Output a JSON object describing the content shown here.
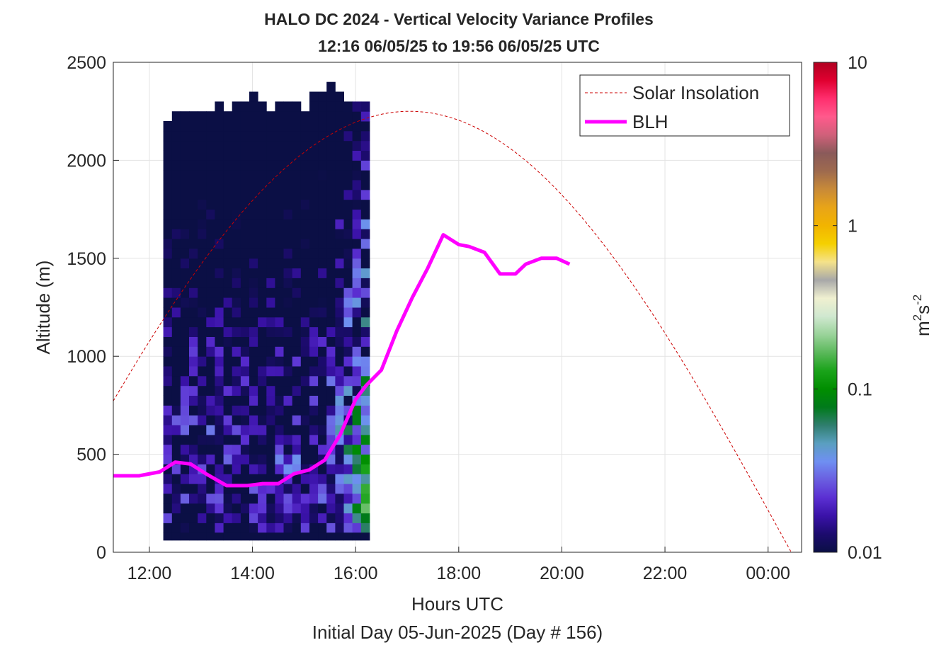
{
  "chart_data": {
    "type": "heatmap",
    "title": "HALO DC 2024 - Vertical Velocity Variance Profiles",
    "subtitle": "12:16 06/05/25 to 19:56 06/05/25  UTC",
    "xlabel": "Hours UTC",
    "xlabel2": "Initial Day 05-Jun-2025 (Day # 156)",
    "ylabel": "Altitude (m)",
    "x_range_hours": [
      11.3,
      24.65
    ],
    "ylim": [
      0,
      2500
    ],
    "x_ticks": [
      12,
      14,
      16,
      18,
      20,
      22,
      24
    ],
    "x_tick_labels": [
      "12:00",
      "14:00",
      "16:00",
      "18:00",
      "20:00",
      "22:00",
      "00:00"
    ],
    "y_ticks": [
      0,
      500,
      1000,
      1500,
      2000,
      2500
    ],
    "y_tick_labels": [
      "0",
      "500",
      "1000",
      "1500",
      "2000",
      "2500"
    ],
    "grid": true,
    "legend_position": "top-right",
    "colorbar": {
      "label": "m2s-2",
      "label_main": "m",
      "label_sup1": "2",
      "label_mid": "s",
      "label_sup2": "-2",
      "scale": "log",
      "range": [
        0.01,
        10
      ],
      "ticks": [
        0.01,
        0.1,
        1,
        10
      ],
      "tick_labels": [
        "0.01",
        "0.1",
        "1",
        "10"
      ],
      "colors": [
        "#0b0f45",
        "#1c0b6e",
        "#3a12a8",
        "#5b2fd2",
        "#6a5ee0",
        "#6f8ff2",
        "#5a9fc0",
        "#2f7e6e",
        "#007a1a",
        "#008e00",
        "#1aa31a",
        "#5ab85a",
        "#9ad39a",
        "#d0e8d0",
        "#f0f0d0",
        "#a8a8a8",
        "#f5e28a",
        "#f5d000",
        "#f2b400",
        "#e8a418",
        "#c88a38",
        "#9e6a4e",
        "#8a5a5a",
        "#d0607a",
        "#ff5a8c",
        "#ff2e6e",
        "#e00030",
        "#b00020"
      ]
    },
    "heatmap": {
      "time_start_hours": 12.27,
      "time_step_hours": 0.1667,
      "alt_start_m": 100,
      "alt_step_m": 50,
      "notes": "log10 of variance per cell; columns = time steps, rows = altitude bins from bottom"
    },
    "series": [
      {
        "name": "Solar Insolation",
        "style": "dashed",
        "color": "#cc0000",
        "peak_time_hours": 17.05,
        "peak_alt_m": 2250,
        "zero_time_hours": 24.45
      },
      {
        "name": "BLH",
        "style": "solid",
        "color": "#ff00ff",
        "x": [
          11.3,
          11.8,
          12.2,
          12.5,
          12.8,
          13.1,
          13.5,
          13.9,
          14.2,
          14.5,
          14.8,
          15.1,
          15.4,
          15.7,
          16.0,
          16.2,
          16.5,
          16.8,
          17.1,
          17.4,
          17.7,
          18.0,
          18.2,
          18.5,
          18.8,
          19.1,
          19.3,
          19.6,
          19.9,
          20.15
        ],
        "y": [
          390,
          390,
          410,
          460,
          450,
          400,
          340,
          340,
          350,
          350,
          400,
          420,
          470,
          600,
          780,
          850,
          930,
          1130,
          1300,
          1450,
          1620,
          1570,
          1560,
          1530,
          1420,
          1420,
          1470,
          1500,
          1500,
          1470
        ]
      }
    ]
  }
}
